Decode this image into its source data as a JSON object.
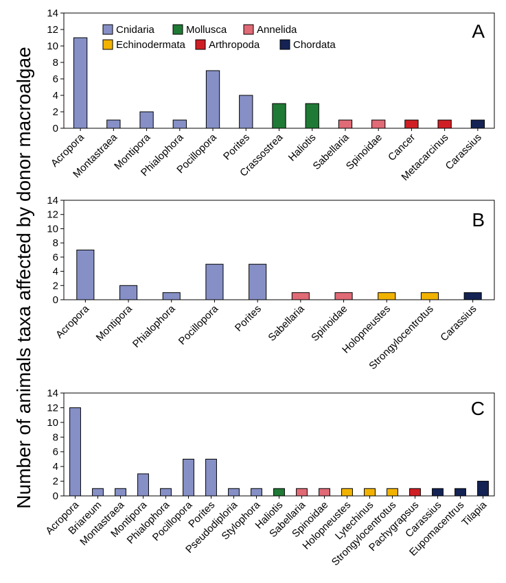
{
  "figure": {
    "ylabel": "Number of animals taxa affected by donor macroalgae"
  },
  "legend": [
    {
      "name": "Cnidaria",
      "color": "#8690c6"
    },
    {
      "name": "Mollusca",
      "color": "#1f7a35"
    },
    {
      "name": "Annelida",
      "color": "#e06a76"
    },
    {
      "name": "Echinodermata",
      "color": "#f2b300"
    },
    {
      "name": "Arthropoda",
      "color": "#d01f24"
    },
    {
      "name": "Chordata",
      "color": "#142354"
    }
  ],
  "chart_data": [
    {
      "type": "bar",
      "panel": "A",
      "ylim": [
        0,
        14
      ],
      "yticks": [
        0,
        2,
        4,
        6,
        8,
        10,
        12,
        14
      ],
      "categories": [
        "Acropora",
        "Montastraea",
        "Montipora",
        "Phialophora",
        "Pocillopora",
        "Porites",
        "Crassostrea",
        "Haliotis",
        "Sabellaria",
        "Spinoidae",
        "Cancer",
        "Metacarcinus",
        "Carassius"
      ],
      "values": [
        11,
        1,
        2,
        1,
        7,
        4,
        3,
        3,
        1,
        1,
        1,
        1,
        1
      ],
      "groups": [
        "Cnidaria",
        "Cnidaria",
        "Cnidaria",
        "Cnidaria",
        "Cnidaria",
        "Cnidaria",
        "Mollusca",
        "Mollusca",
        "Annelida",
        "Annelida",
        "Arthropoda",
        "Arthropoda",
        "Chordata"
      ]
    },
    {
      "type": "bar",
      "panel": "B",
      "ylim": [
        0,
        14
      ],
      "yticks": [
        0,
        2,
        4,
        6,
        8,
        10,
        12,
        14
      ],
      "categories": [
        "Acropora",
        "Montipora",
        "Phialophora",
        "Pocillopora",
        "Porites",
        "Sabellaria",
        "Spinoidae",
        "Holopneustes",
        "Strongylocentrotus",
        "Carassius"
      ],
      "values": [
        7,
        2,
        1,
        5,
        5,
        1,
        1,
        1,
        1,
        1
      ],
      "groups": [
        "Cnidaria",
        "Cnidaria",
        "Cnidaria",
        "Cnidaria",
        "Cnidaria",
        "Annelida",
        "Annelida",
        "Echinodermata",
        "Echinodermata",
        "Chordata"
      ]
    },
    {
      "type": "bar",
      "panel": "C",
      "ylim": [
        0,
        14
      ],
      "yticks": [
        0,
        2,
        4,
        6,
        8,
        10,
        12,
        14
      ],
      "categories": [
        "Acropora",
        "Briareum",
        "Montastraea",
        "Montipora",
        "Phialophora",
        "Pocillopora",
        "Porites",
        "Pseudodiploria",
        "Stylophora",
        "Haliotis",
        "Sabellaria",
        "Spinoidae",
        "Holopneustes",
        "Lytechinus",
        "Strongylocentrotus",
        "Pachygrapsus",
        "Carassius",
        "Eupomacentrus",
        "Tilapia"
      ],
      "values": [
        12,
        1,
        1,
        3,
        1,
        5,
        5,
        1,
        1,
        1,
        1,
        1,
        1,
        1,
        1,
        1,
        1,
        1,
        2
      ],
      "groups": [
        "Cnidaria",
        "Cnidaria",
        "Cnidaria",
        "Cnidaria",
        "Cnidaria",
        "Cnidaria",
        "Cnidaria",
        "Cnidaria",
        "Cnidaria",
        "Mollusca",
        "Annelida",
        "Annelida",
        "Echinodermata",
        "Echinodermata",
        "Echinodermata",
        "Arthropoda",
        "Chordata",
        "Chordata",
        "Chordata"
      ]
    }
  ]
}
